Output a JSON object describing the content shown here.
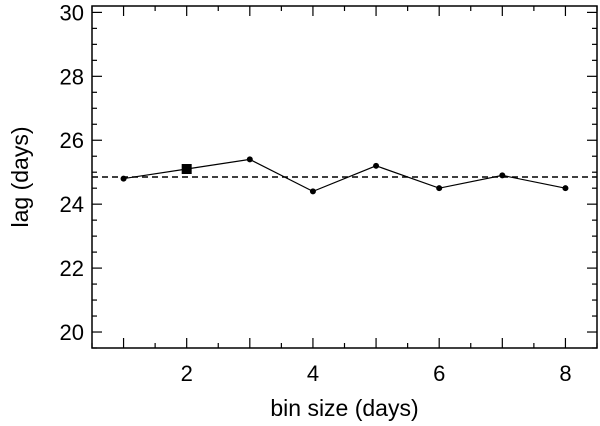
{
  "chart_data": {
    "type": "line",
    "title": "",
    "xlabel": "bin size (days)",
    "ylabel": "lag (days)",
    "xlim": [
      0.5,
      8.5
    ],
    "ylim": [
      19.5,
      30.2
    ],
    "x_ticks": [
      2,
      4,
      6,
      8
    ],
    "y_ticks": [
      20,
      22,
      24,
      26,
      28,
      30
    ],
    "x_minor_step": 0.5,
    "y_minor_step": 0.5,
    "grid": false,
    "series": [
      {
        "x": [
          1,
          2,
          3,
          4,
          5,
          6,
          7,
          8
        ],
        "y": [
          24.8,
          25.1,
          25.4,
          24.4,
          25.2,
          24.5,
          24.9,
          24.5
        ],
        "marker": "circle",
        "line": "solid",
        "highlight": {
          "x": 2,
          "y": 25.1,
          "marker": "square"
        }
      }
    ],
    "reference_line": {
      "y": 24.85,
      "style": "dashed"
    },
    "colors": {
      "line": "#000000",
      "marker": "#000000",
      "axes": "#000000"
    }
  }
}
